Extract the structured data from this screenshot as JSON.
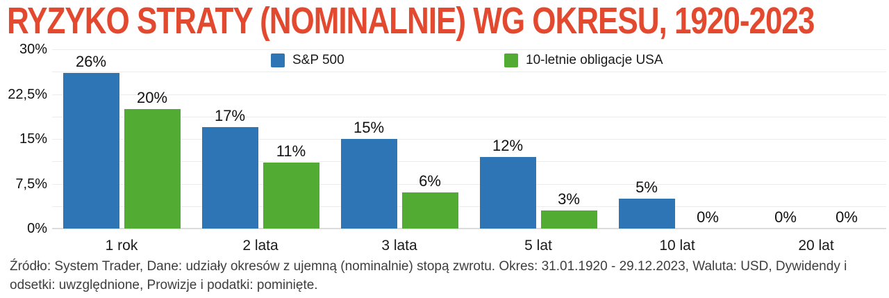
{
  "title": "RYZYKO STRATY (NOMINALNIE) WG OKRESU, 1920-2023",
  "legend": {
    "items": [
      {
        "label": "S&P 500",
        "color": "#2E75B5"
      },
      {
        "label": "10-letnie obligacje USA",
        "color": "#52AB32"
      }
    ]
  },
  "chart_data": {
    "type": "bar",
    "title": "RYZYKO STRATY (NOMINALNIE) WG OKRESU, 1920-2023",
    "categories": [
      "1 rok",
      "2 lata",
      "3 lata",
      "5 lat",
      "10 lat",
      "20 lat"
    ],
    "series": [
      {
        "name": "S&P 500",
        "color": "#2E75B5",
        "values": [
          26,
          17,
          15,
          12,
          5,
          0
        ]
      },
      {
        "name": "10-letnie obligacje USA",
        "color": "#52AB32",
        "values": [
          20,
          11,
          6,
          3,
          0,
          0
        ]
      }
    ],
    "value_label_format": "percent",
    "ylim": [
      0,
      30
    ],
    "grid_step": 3.75,
    "grid": true,
    "yticks": [
      {
        "value": 30,
        "label": "30%"
      },
      {
        "value": 22.5,
        "label": "22,5%"
      },
      {
        "value": 15,
        "label": "15%"
      },
      {
        "value": 7.5,
        "label": "7,5%"
      },
      {
        "value": 0,
        "label": "0%"
      }
    ],
    "legend_position": "top"
  },
  "footer": "Źródło: System Trader, Dane: udziały okresów z ujemną (nominalnie) stopą zwrotu. Okres: 31.01.1920 - 29.12.2023, Waluta: USD, Dywidendy i odsetki: uwzględnione, Prowizje i podatki: pominięte.",
  "colors": {
    "title": "#E2492F",
    "sp500": "#2E75B5",
    "bonds": "#52AB32",
    "gridline": "#ECECEC",
    "baseline": "#DCDCDC",
    "text": "#1A1A1A",
    "footer_text": "#3E3E3E",
    "background": "#FFFFFF"
  }
}
